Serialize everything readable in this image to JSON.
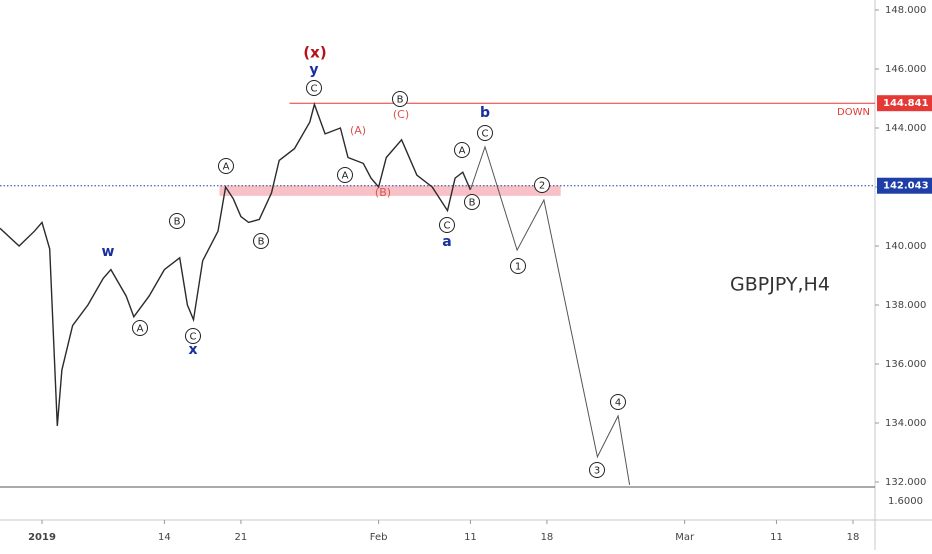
{
  "chart_data": {
    "type": "line",
    "watermark": "GBPJPY,H4",
    "xlim": [
      -2.745,
      54.44
    ],
    "ylim": [
      131.83,
      148.339
    ],
    "xticks": [
      {
        "value": 0,
        "label": "2019"
      },
      {
        "value": 8,
        "label": "14"
      },
      {
        "value": 13,
        "label": "21"
      },
      {
        "value": 22,
        "label": "Feb"
      },
      {
        "value": 28,
        "label": "11"
      },
      {
        "value": 33,
        "label": "18"
      },
      {
        "value": 42,
        "label": "Mar"
      },
      {
        "value": 48,
        "label": "11"
      },
      {
        "value": 53,
        "label": "18"
      }
    ],
    "yticks": [
      {
        "value": 148,
        "label": "148.000"
      },
      {
        "value": 146,
        "label": "146.000"
      },
      {
        "value": 144,
        "label": "144.000"
      },
      {
        "value": 142,
        "label": "142.000"
      },
      {
        "value": 140,
        "label": "140.000"
      },
      {
        "value": 138,
        "label": "138.000"
      },
      {
        "value": 136,
        "label": "136.000"
      },
      {
        "value": 134,
        "label": "134.000"
      },
      {
        "value": 132,
        "label": "132.000"
      }
    ],
    "indicator_tick": "1.6000",
    "series": [
      {
        "color": "#2b2b2b",
        "x": [
          -2.745,
          -1.5,
          -0.5,
          0,
          0.5,
          1.0,
          1.3,
          2,
          3,
          4,
          4.5,
          5.5,
          6,
          7,
          8,
          9,
          9.5,
          9.9,
          10.5,
          11.5,
          12,
          12.5,
          13,
          13.5,
          14.2,
          15,
          15.5,
          16.5,
          17.5,
          17.8,
          18.5,
          19.5,
          20,
          21,
          21.5,
          22,
          22.5,
          23.5,
          24.5,
          25.5,
          26.5,
          27,
          27.5,
          28
        ],
        "values": [
          140.6,
          140.0,
          140.5,
          140.8,
          139.9,
          133.9,
          135.8,
          137.3,
          138.0,
          138.9,
          139.2,
          138.3,
          137.6,
          138.3,
          139.2,
          139.6,
          138.0,
          137.5,
          139.5,
          140.5,
          142.0,
          141.6,
          141.0,
          140.8,
          140.9,
          141.8,
          142.9,
          143.3,
          144.2,
          144.8,
          143.8,
          144.0,
          143.0,
          142.8,
          142.3,
          142.0,
          143.0,
          143.6,
          142.4,
          142.0,
          141.2,
          142.3,
          142.5,
          141.9
        ]
      },
      {
        "color": "#555555",
        "x": [
          28,
          28.95,
          31.05,
          32.8,
          36.3,
          37.65,
          38.4
        ],
        "values": [
          141.9,
          143.36,
          139.86,
          141.56,
          132.85,
          134.24,
          131.9
        ]
      }
    ],
    "levels": [
      {
        "value": 144.841,
        "label": "144.841",
        "color": "#e53935",
        "note": "DOWN"
      },
      {
        "value": 142.043,
        "label": "142.043",
        "color": "#1e3fa8"
      }
    ],
    "zone": {
      "from": 141.7,
      "to": 142.05,
      "x": [
        11.6,
        33.9
      ],
      "color": "#f4a6ad"
    },
    "annotations": [
      {
        "text": "(x)",
        "style": "red"
      },
      {
        "text": "y",
        "style": "blue"
      },
      {
        "text": "C",
        "style": "circle"
      },
      {
        "text": "B",
        "style": "circle"
      },
      {
        "text": "(C)",
        "style": "redsmall"
      },
      {
        "text": "(A)",
        "style": "redsmall"
      },
      {
        "text": "A",
        "style": "circle"
      },
      {
        "text": "(B)",
        "style": "redsmall"
      },
      {
        "text": "A",
        "style": "circle"
      },
      {
        "text": "B",
        "style": "circle"
      },
      {
        "text": "C",
        "style": "circle"
      },
      {
        "text": "a",
        "style": "blue"
      },
      {
        "text": "b",
        "style": "blue"
      },
      {
        "text": "C",
        "style": "circle"
      },
      {
        "text": "2",
        "style": "circle"
      },
      {
        "text": "1",
        "style": "circle"
      },
      {
        "text": "3",
        "style": "circle"
      },
      {
        "text": "4",
        "style": "circle"
      },
      {
        "text": "w",
        "style": "blue"
      },
      {
        "text": "A",
        "style": "circle"
      },
      {
        "text": "C",
        "style": "circle"
      },
      {
        "text": "x",
        "style": "blue"
      },
      {
        "text": "B",
        "style": "circle"
      },
      {
        "text": "A",
        "style": "circle"
      },
      {
        "text": "B",
        "style": "circle"
      }
    ]
  }
}
